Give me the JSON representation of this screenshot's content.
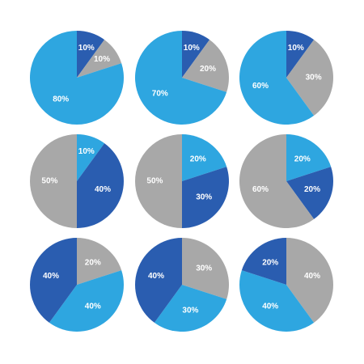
{
  "colors": {
    "light_blue": "#2ea6e0",
    "dark_blue": "#2a5db0",
    "gray": "#a8a8a8",
    "background": "#ffffff"
  },
  "chart_data": [
    {
      "type": "pie",
      "slices": [
        {
          "value": 10,
          "label": "10%",
          "color": "dark_blue"
        },
        {
          "value": 10,
          "label": "10%",
          "color": "gray"
        },
        {
          "value": 80,
          "label": "80%",
          "color": "light_blue"
        }
      ]
    },
    {
      "type": "pie",
      "slices": [
        {
          "value": 10,
          "label": "10%",
          "color": "dark_blue"
        },
        {
          "value": 20,
          "label": "20%",
          "color": "gray"
        },
        {
          "value": 70,
          "label": "70%",
          "color": "light_blue"
        }
      ]
    },
    {
      "type": "pie",
      "slices": [
        {
          "value": 10,
          "label": "10%",
          "color": "dark_blue"
        },
        {
          "value": 30,
          "label": "30%",
          "color": "gray"
        },
        {
          "value": 60,
          "label": "60%",
          "color": "light_blue"
        }
      ]
    },
    {
      "type": "pie",
      "slices": [
        {
          "value": 10,
          "label": "10%",
          "color": "light_blue"
        },
        {
          "value": 40,
          "label": "40%",
          "color": "dark_blue"
        },
        {
          "value": 50,
          "label": "50%",
          "color": "gray"
        }
      ]
    },
    {
      "type": "pie",
      "slices": [
        {
          "value": 20,
          "label": "20%",
          "color": "light_blue"
        },
        {
          "value": 30,
          "label": "30%",
          "color": "dark_blue"
        },
        {
          "value": 50,
          "label": "50%",
          "color": "gray"
        }
      ]
    },
    {
      "type": "pie",
      "slices": [
        {
          "value": 20,
          "label": "20%",
          "color": "light_blue"
        },
        {
          "value": 20,
          "label": "20%",
          "color": "dark_blue"
        },
        {
          "value": 60,
          "label": "60%",
          "color": "gray"
        }
      ]
    },
    {
      "type": "pie",
      "slices": [
        {
          "value": 20,
          "label": "20%",
          "color": "gray"
        },
        {
          "value": 40,
          "label": "40%",
          "color": "light_blue"
        },
        {
          "value": 40,
          "label": "40%",
          "color": "dark_blue"
        }
      ]
    },
    {
      "type": "pie",
      "slices": [
        {
          "value": 30,
          "label": "30%",
          "color": "gray"
        },
        {
          "value": 30,
          "label": "30%",
          "color": "light_blue"
        },
        {
          "value": 40,
          "label": "40%",
          "color": "dark_blue"
        }
      ]
    },
    {
      "type": "pie",
      "slices": [
        {
          "value": 40,
          "label": "40%",
          "color": "gray"
        },
        {
          "value": 40,
          "label": "40%",
          "color": "light_blue"
        },
        {
          "value": 20,
          "label": "20%",
          "color": "dark_blue"
        }
      ]
    }
  ]
}
